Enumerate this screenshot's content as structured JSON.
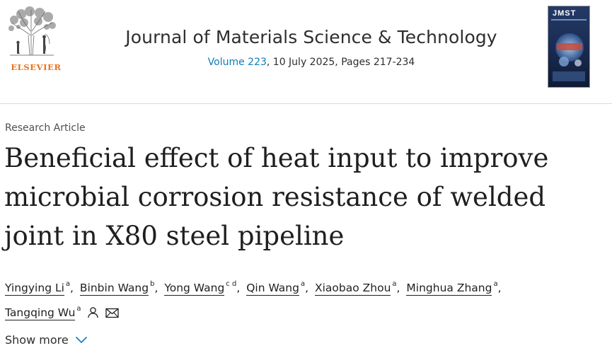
{
  "publisher": {
    "logo_text": "ELSEVIER"
  },
  "journal": {
    "title": "Journal of Materials Science & Technology",
    "volume_link": "Volume 223",
    "issue_details": ", 10 July 2025, Pages 217-234",
    "cover_label": "JMST"
  },
  "article": {
    "type": "Research Article",
    "title_lines": [
      "Beneficial effect of heat input to improve",
      "microbial corrosion resistance of welded",
      "joint in X80 steel pipeline"
    ],
    "authors": [
      {
        "name": "Yingying Li",
        "aff": "a"
      },
      {
        "name": "Binbin Wang",
        "aff": "b"
      },
      {
        "name": "Yong Wang",
        "aff": "c d"
      },
      {
        "name": "Qin Wang",
        "aff": "a"
      },
      {
        "name": "Xiaobao Zhou",
        "aff": "a"
      },
      {
        "name": "Minghua Zhang",
        "aff": "a"
      },
      {
        "name": "Tangqing Wu",
        "aff": "a"
      }
    ],
    "show_more": "Show more"
  },
  "colors": {
    "link": "#0c7dbb",
    "publisher": "#e9711c",
    "text": "#1f1f1f"
  },
  "icons": {
    "author_profile": "person-icon",
    "author_email": "envelope-icon",
    "expand": "chevron-down-icon"
  }
}
